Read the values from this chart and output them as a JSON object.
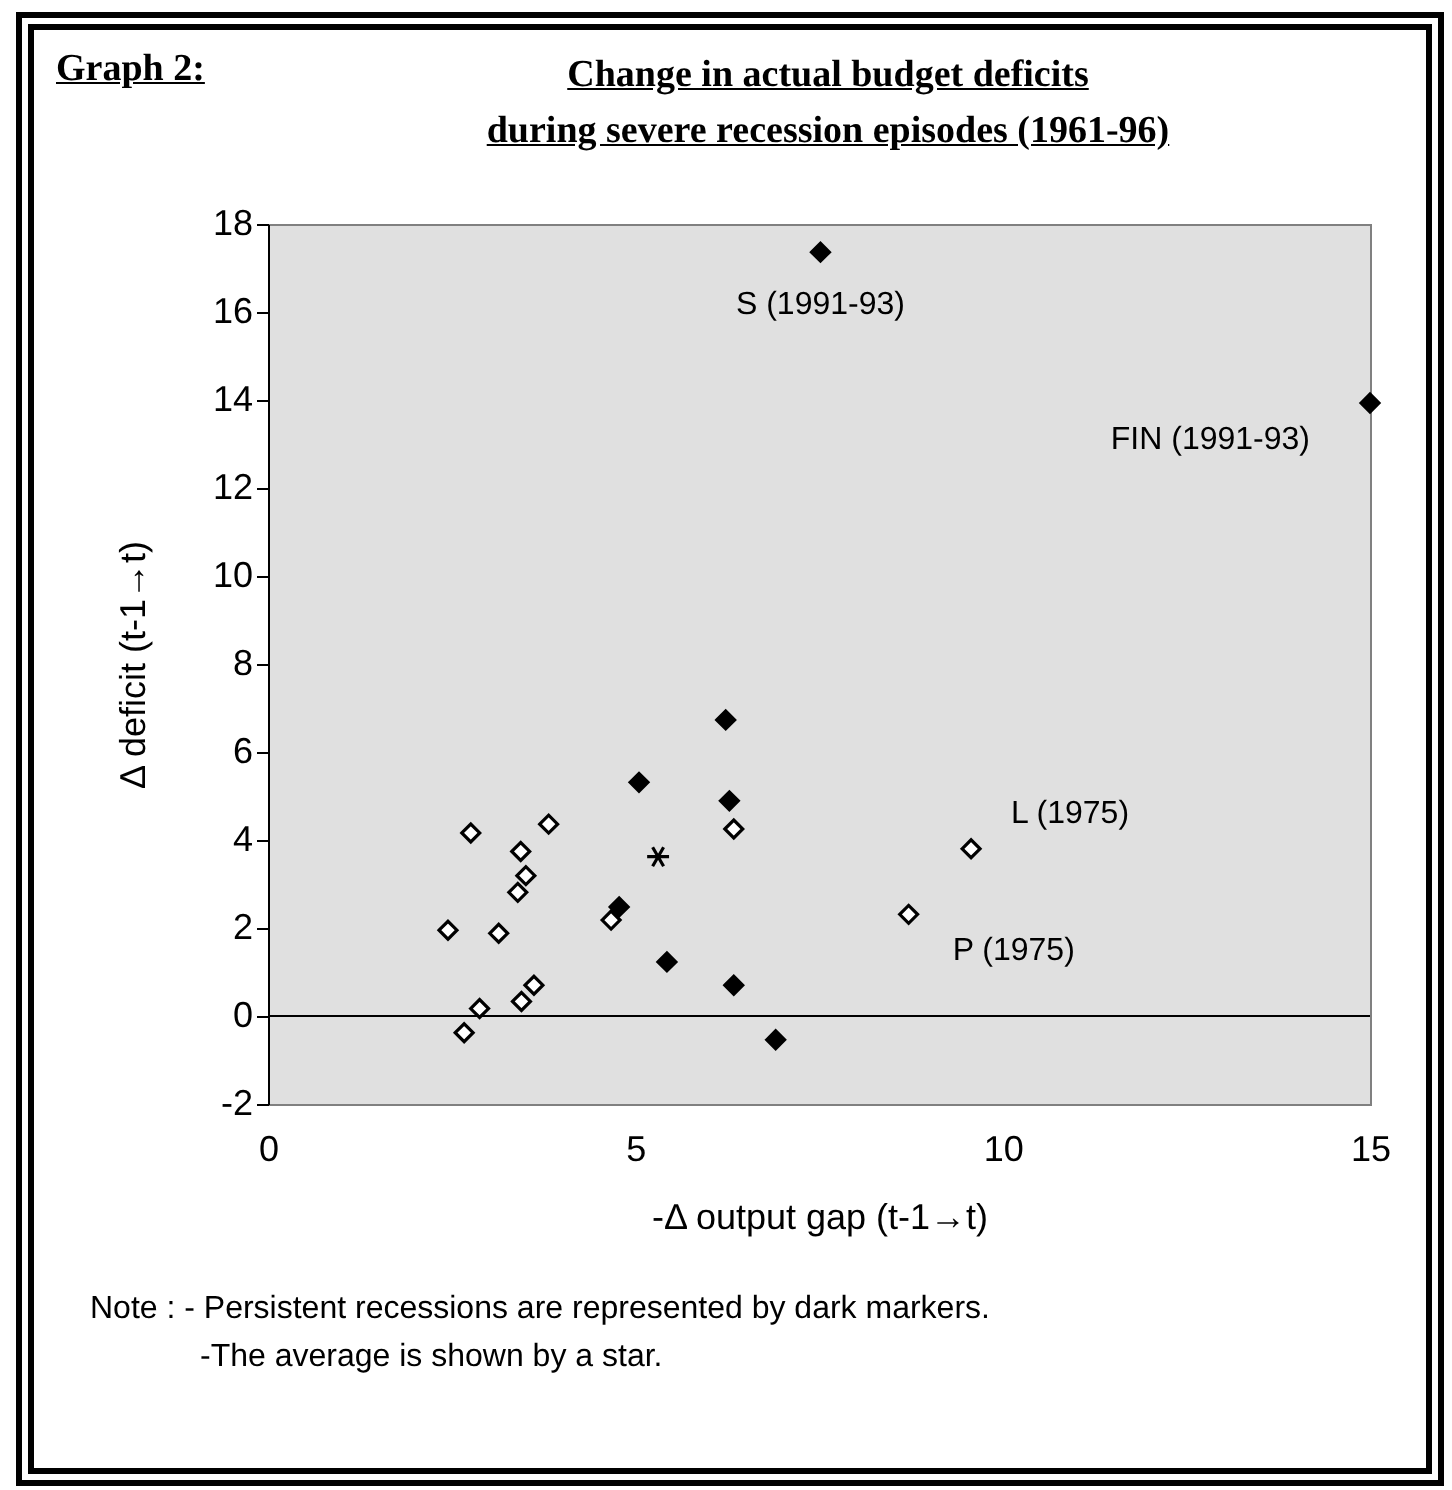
{
  "chart_data": {
    "type": "scatter",
    "title": "Change in actual budget deficits\nduring severe recession episodes (1961-96)",
    "xlabel": "-Δ output gap (t-1→t)",
    "ylabel": "Δ deficit (t-1→t)",
    "xlim": [
      0,
      15
    ],
    "xticks": [
      0,
      5,
      10,
      15
    ],
    "ylim": [
      -2,
      18
    ],
    "yticks": [
      -2,
      0,
      2,
      4,
      6,
      8,
      10,
      12,
      14,
      16,
      18
    ],
    "marker": "diamond",
    "series": [
      {
        "color": "#ffffff",
        "x": [
          2.76,
          2.45,
          3.14,
          2.67,
          2.88,
          3.44,
          3.51,
          3.4,
          3.82,
          3.45,
          3.62,
          4.67,
          6.34,
          9.57,
          8.72
        ],
        "values": [
          4.16,
          1.95,
          1.88,
          -0.38,
          0.17,
          3.74,
          3.19,
          2.81,
          4.36,
          0.33,
          0.7,
          2.18,
          4.25,
          3.8,
          2.31
        ]
      },
      {
        "color": "#000000",
        "x": [
          5.05,
          4.78,
          6.23,
          6.28,
          5.43,
          6.34,
          6.91,
          7.52,
          15
        ],
        "values": [
          5.31,
          2.48,
          6.73,
          4.89,
          1.23,
          0.7,
          -0.54,
          17.36,
          13.93
        ]
      },
      {
        "marker": "cross",
        "color": "#000000",
        "x": [
          5.31
        ],
        "values": [
          3.62
        ]
      }
    ],
    "ref_lines": [
      {
        "axis": "y",
        "value": 0,
        "color": "#000000"
      }
    ],
    "annotations": [
      "Graph 2:",
      {
        "text": "S (1991-93)",
        "x": 7.52,
        "y": 17.36
      },
      {
        "text": "FIN (1991-93)",
        "x": 15,
        "y": 13.93
      },
      {
        "text": "L (1975)",
        "x": 9.57,
        "y": 3.8
      },
      {
        "text": "P (1975)",
        "x": 8.72,
        "y": 2.31
      },
      "Note : - Persistent recessions are represented by dark markers.",
      "-The average is shown by a star."
    ]
  }
}
